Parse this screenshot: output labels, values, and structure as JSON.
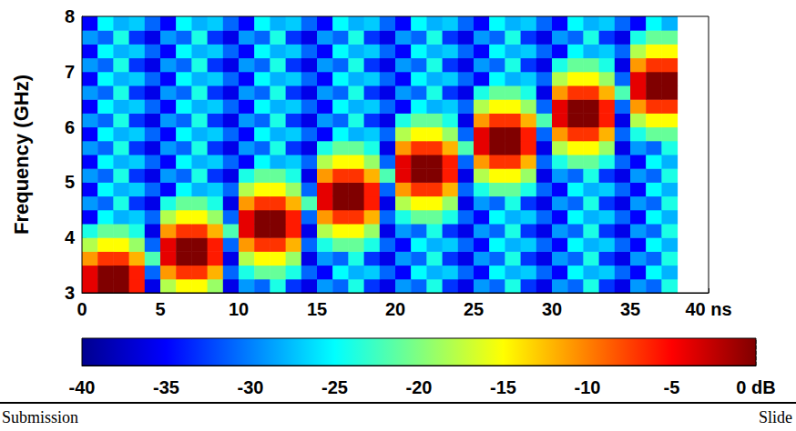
{
  "chart_data": {
    "type": "heatmap",
    "y_label": "Frequency (GHz)",
    "xlim": [
      0,
      40
    ],
    "xticks": [
      0,
      5,
      10,
      15,
      20,
      25,
      30,
      35,
      {
        "value": 40,
        "label": "40 ns"
      }
    ],
    "ylim": [
      3,
      8
    ],
    "yticks": [
      3,
      4,
      5,
      6,
      7,
      8
    ],
    "x_edges": [
      0,
      1,
      2,
      3,
      4,
      5,
      6,
      7,
      8,
      9,
      10,
      11,
      12,
      13,
      14,
      15,
      16,
      17,
      18,
      19,
      20,
      21,
      22,
      23,
      24,
      25,
      26,
      27,
      28,
      29,
      30,
      31,
      32,
      33,
      34,
      35,
      36,
      37,
      38
    ],
    "y_edges": [
      3,
      3.25,
      3.5,
      3.75,
      4,
      4.25,
      4.5,
      4.75,
      5,
      5.25,
      5.5,
      5.75,
      6,
      6.25,
      6.5,
      6.75,
      7,
      7.25,
      7.5,
      7.75,
      8
    ],
    "cells": [
      [
        -4,
        0,
        0,
        -6,
        -36,
        -18,
        -15,
        -15,
        -19,
        -36,
        -29,
        -31,
        -24,
        -33,
        -36,
        -29,
        -31,
        -24,
        -33,
        -36,
        -29,
        -31,
        -24,
        -33,
        -36,
        -29,
        -31,
        -24,
        -33,
        -36,
        -29,
        -31,
        -24,
        -33,
        -36,
        -29,
        -31,
        -24
      ],
      [
        -4,
        0,
        0,
        -6,
        -31,
        -11,
        -7,
        -7,
        -12,
        -31,
        -24,
        -21,
        -21,
        -24,
        -31,
        -35,
        -25,
        -28,
        -27,
        -31,
        -35,
        -25,
        -28,
        -27,
        -31,
        -35,
        -25,
        -28,
        -27,
        -31,
        -35,
        -25,
        -28,
        -27,
        -31,
        -35,
        -25,
        -28
      ],
      [
        -11,
        -7,
        -7,
        -12,
        -22,
        -4,
        0,
        0,
        -6,
        -36,
        -18,
        -15,
        -15,
        -19,
        -36,
        -29,
        -31,
        -24,
        -33,
        -36,
        -29,
        -31,
        -24,
        -33,
        -36,
        -29,
        -31,
        -24,
        -33,
        -36,
        -29,
        -31,
        -24,
        -33,
        -36,
        -29,
        -31,
        -24
      ],
      [
        -18,
        -15,
        -15,
        -19,
        -31,
        -4,
        0,
        0,
        -6,
        -31,
        -11,
        -7,
        -7,
        -12,
        -31,
        -24,
        -21,
        -21,
        -24,
        -31,
        -35,
        -25,
        -28,
        -27,
        -31,
        -35,
        -25,
        -28,
        -27,
        -31,
        -35,
        -25,
        -28,
        -27,
        -31,
        -35,
        -25,
        -28
      ],
      [
        -24,
        -21,
        -21,
        -24,
        -36,
        -11,
        -7,
        -7,
        -12,
        -22,
        -4,
        0,
        0,
        -6,
        -36,
        -18,
        -15,
        -15,
        -19,
        -36,
        -29,
        -31,
        -24,
        -33,
        -36,
        -29,
        -31,
        -24,
        -33,
        -36,
        -29,
        -31,
        -24,
        -33,
        -36,
        -29,
        -31,
        -24
      ],
      [
        -35,
        -25,
        -28,
        -27,
        -31,
        -18,
        -15,
        -15,
        -19,
        -31,
        -4,
        0,
        0,
        -6,
        -31,
        -11,
        -7,
        -7,
        -12,
        -31,
        -24,
        -21,
        -21,
        -24,
        -31,
        -35,
        -25,
        -28,
        -27,
        -31,
        -35,
        -25,
        -28,
        -27,
        -31,
        -35,
        -25,
        -28
      ],
      [
        -29,
        -31,
        -24,
        -33,
        -36,
        -24,
        -21,
        -21,
        -24,
        -36,
        -11,
        -7,
        -7,
        -12,
        -22,
        -4,
        0,
        0,
        -6,
        -36,
        -18,
        -15,
        -15,
        -19,
        -36,
        -29,
        -31,
        -24,
        -33,
        -36,
        -29,
        -31,
        -24,
        -33,
        -36,
        -29,
        -31,
        -24
      ],
      [
        -35,
        -25,
        -28,
        -27,
        -31,
        -35,
        -25,
        -28,
        -27,
        -31,
        -18,
        -15,
        -15,
        -19,
        -31,
        -4,
        0,
        0,
        -6,
        -31,
        -11,
        -7,
        -7,
        -12,
        -31,
        -24,
        -21,
        -21,
        -24,
        -31,
        -35,
        -25,
        -28,
        -27,
        -31,
        -35,
        -25,
        -28
      ],
      [
        -29,
        -31,
        -24,
        -33,
        -36,
        -29,
        -31,
        -24,
        -33,
        -36,
        -24,
        -21,
        -21,
        -24,
        -36,
        -11,
        -7,
        -7,
        -12,
        -22,
        -4,
        0,
        0,
        -6,
        -36,
        -18,
        -15,
        -15,
        -19,
        -36,
        -29,
        -31,
        -24,
        -33,
        -36,
        -29,
        -31,
        -24
      ],
      [
        -35,
        -25,
        -28,
        -27,
        -31,
        -35,
        -25,
        -28,
        -27,
        -31,
        -35,
        -25,
        -28,
        -27,
        -31,
        -18,
        -15,
        -15,
        -19,
        -31,
        -4,
        0,
        0,
        -6,
        -31,
        -11,
        -7,
        -7,
        -12,
        -31,
        -24,
        -21,
        -21,
        -24,
        -31,
        -35,
        -25,
        -28
      ],
      [
        -29,
        -31,
        -24,
        -33,
        -36,
        -29,
        -31,
        -24,
        -33,
        -36,
        -29,
        -31,
        -24,
        -33,
        -36,
        -24,
        -21,
        -21,
        -24,
        -36,
        -11,
        -7,
        -7,
        -12,
        -22,
        -4,
        0,
        0,
        -6,
        -36,
        -18,
        -15,
        -15,
        -19,
        -36,
        -29,
        -31,
        -24
      ],
      [
        -35,
        -25,
        -28,
        -27,
        -31,
        -35,
        -25,
        -28,
        -27,
        -31,
        -35,
        -25,
        -28,
        -27,
        -31,
        -35,
        -25,
        -28,
        -27,
        -31,
        -18,
        -15,
        -15,
        -19,
        -31,
        -4,
        0,
        0,
        -6,
        -31,
        -11,
        -7,
        -7,
        -12,
        -31,
        -24,
        -21,
        -21
      ],
      [
        -29,
        -31,
        -24,
        -33,
        -36,
        -29,
        -31,
        -24,
        -33,
        -36,
        -29,
        -31,
        -24,
        -33,
        -36,
        -29,
        -31,
        -24,
        -33,
        -36,
        -24,
        -21,
        -21,
        -24,
        -36,
        -11,
        -7,
        -7,
        -12,
        -22,
        -4,
        0,
        0,
        -6,
        -36,
        -18,
        -15,
        -15
      ],
      [
        -35,
        -25,
        -28,
        -27,
        -31,
        -35,
        -25,
        -28,
        -27,
        -31,
        -35,
        -25,
        -28,
        -27,
        -31,
        -35,
        -25,
        -28,
        -27,
        -31,
        -35,
        -25,
        -28,
        -27,
        -31,
        -18,
        -15,
        -15,
        -19,
        -31,
        -4,
        0,
        0,
        -6,
        -31,
        -11,
        -7,
        -7
      ],
      [
        -29,
        -31,
        -24,
        -33,
        -36,
        -29,
        -31,
        -24,
        -33,
        -36,
        -29,
        -31,
        -24,
        -33,
        -36,
        -29,
        -31,
        -24,
        -33,
        -36,
        -29,
        -31,
        -24,
        -33,
        -36,
        -24,
        -21,
        -21,
        -24,
        -36,
        -11,
        -7,
        -7,
        -12,
        -22,
        -4,
        0,
        0
      ],
      [
        -35,
        -25,
        -28,
        -27,
        -31,
        -35,
        -25,
        -28,
        -27,
        -31,
        -35,
        -25,
        -28,
        -27,
        -31,
        -35,
        -25,
        -28,
        -27,
        -31,
        -35,
        -25,
        -28,
        -27,
        -31,
        -35,
        -25,
        -28,
        -27,
        -31,
        -18,
        -15,
        -15,
        -19,
        -31,
        -4,
        0,
        0
      ],
      [
        -29,
        -31,
        -24,
        -33,
        -36,
        -29,
        -31,
        -24,
        -33,
        -36,
        -29,
        -31,
        -24,
        -33,
        -36,
        -29,
        -31,
        -24,
        -33,
        -36,
        -29,
        -31,
        -24,
        -33,
        -36,
        -29,
        -31,
        -24,
        -33,
        -36,
        -24,
        -21,
        -21,
        -24,
        -36,
        -11,
        -7,
        -7
      ],
      [
        -35,
        -25,
        -28,
        -27,
        -31,
        -35,
        -25,
        -28,
        -27,
        -31,
        -35,
        -25,
        -28,
        -27,
        -31,
        -35,
        -25,
        -28,
        -27,
        -31,
        -35,
        -25,
        -28,
        -27,
        -31,
        -35,
        -25,
        -28,
        -27,
        -31,
        -35,
        -25,
        -28,
        -27,
        -31,
        -18,
        -15,
        -15
      ],
      [
        -29,
        -31,
        -24,
        -33,
        -36,
        -29,
        -31,
        -24,
        -33,
        -36,
        -29,
        -31,
        -24,
        -33,
        -36,
        -29,
        -31,
        -24,
        -33,
        -36,
        -29,
        -31,
        -24,
        -33,
        -36,
        -29,
        -31,
        -24,
        -33,
        -36,
        -29,
        -31,
        -24,
        -33,
        -36,
        -24,
        -21,
        -21
      ],
      [
        -35,
        -25,
        -28,
        -27,
        -31,
        -35,
        -25,
        -28,
        -27,
        -31,
        -35,
        -25,
        -28,
        -27,
        -31,
        -35,
        -25,
        -28,
        -27,
        -31,
        -35,
        -25,
        -28,
        -27,
        -31,
        -35,
        -25,
        -28,
        -27,
        -31,
        -35,
        -25,
        -28,
        -27,
        -31,
        -35,
        -25,
        -28
      ]
    ],
    "colorbar": {
      "range": [
        -40,
        0
      ],
      "ticks": [
        -40,
        -35,
        -30,
        -25,
        -20,
        -15,
        -10,
        -5,
        {
          "value": 0,
          "label": "0 dB"
        }
      ]
    },
    "footer": {
      "left": "Submission",
      "right": "Slide"
    }
  }
}
